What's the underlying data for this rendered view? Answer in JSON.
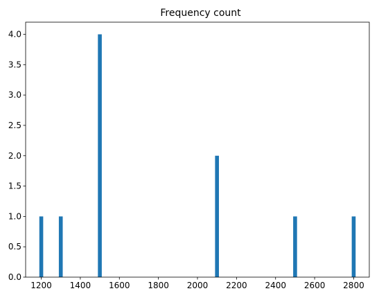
{
  "chart_data": {
    "type": "bar",
    "title": "Frequency count",
    "xlabel": "",
    "ylabel": "",
    "x": [
      1200,
      1300,
      1500,
      2100,
      2500,
      2800
    ],
    "values": [
      1,
      1,
      4,
      2,
      1,
      1
    ],
    "xlim": [
      1120,
      2880
    ],
    "ylim": [
      0,
      4.2
    ],
    "xticks": [
      1200,
      1400,
      1600,
      1800,
      2000,
      2200,
      2400,
      2600,
      2800
    ],
    "xtick_labels": [
      "1200",
      "1400",
      "1600",
      "1800",
      "2000",
      "2200",
      "2400",
      "2600",
      "2800"
    ],
    "yticks": [
      0,
      0.5,
      1,
      1.5,
      2,
      2.5,
      3,
      3.5,
      4
    ],
    "ytick_labels": [
      "0.0",
      "0.5",
      "1.0",
      "1.5",
      "2.0",
      "2.5",
      "3.0",
      "3.5",
      "4.0"
    ],
    "bar_color": "#1f77b4",
    "grid": false,
    "legend": "none"
  }
}
